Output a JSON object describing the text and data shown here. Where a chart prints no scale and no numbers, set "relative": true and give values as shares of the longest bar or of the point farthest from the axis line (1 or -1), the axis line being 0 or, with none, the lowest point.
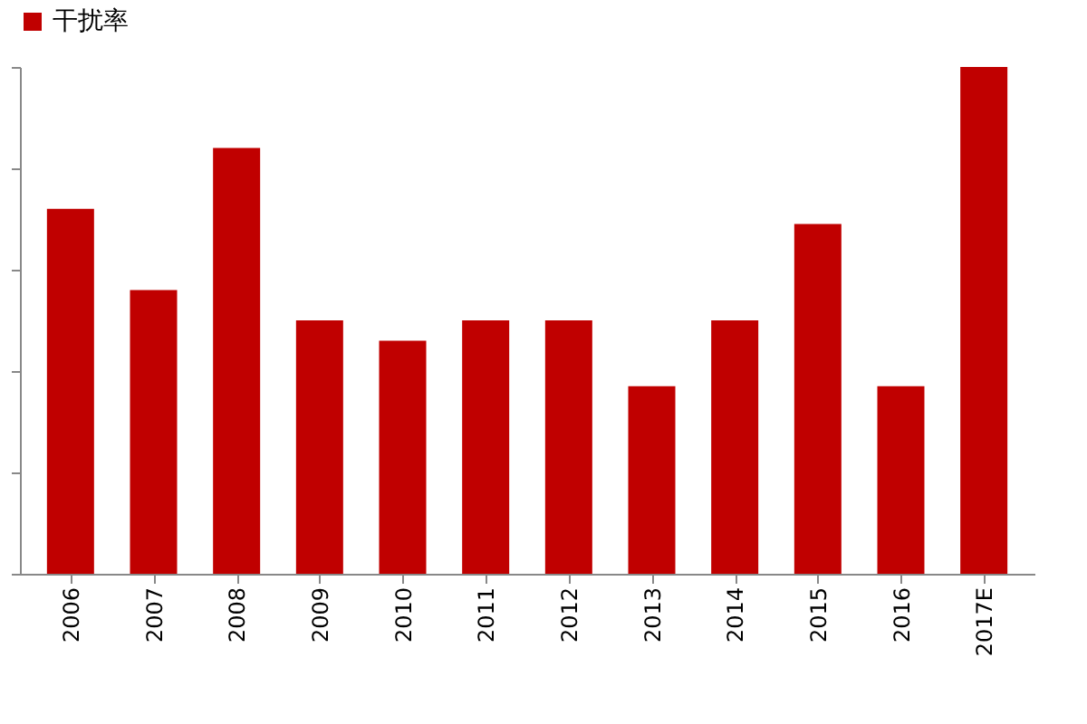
{
  "chart_data": {
    "type": "bar",
    "relative": true,
    "categories": [
      "2006",
      "2007",
      "2008",
      "2009",
      "2010",
      "2011",
      "2012",
      "2013",
      "2014",
      "2015",
      "2016",
      "2017E"
    ],
    "series": [
      {
        "name": "干扰率",
        "color": "#c00000",
        "values": [
          0.72,
          0.56,
          0.84,
          0.5,
          0.46,
          0.5,
          0.5,
          0.37,
          0.5,
          0.69,
          0.37,
          1
        ]
      }
    ],
    "legend": "top"
  }
}
